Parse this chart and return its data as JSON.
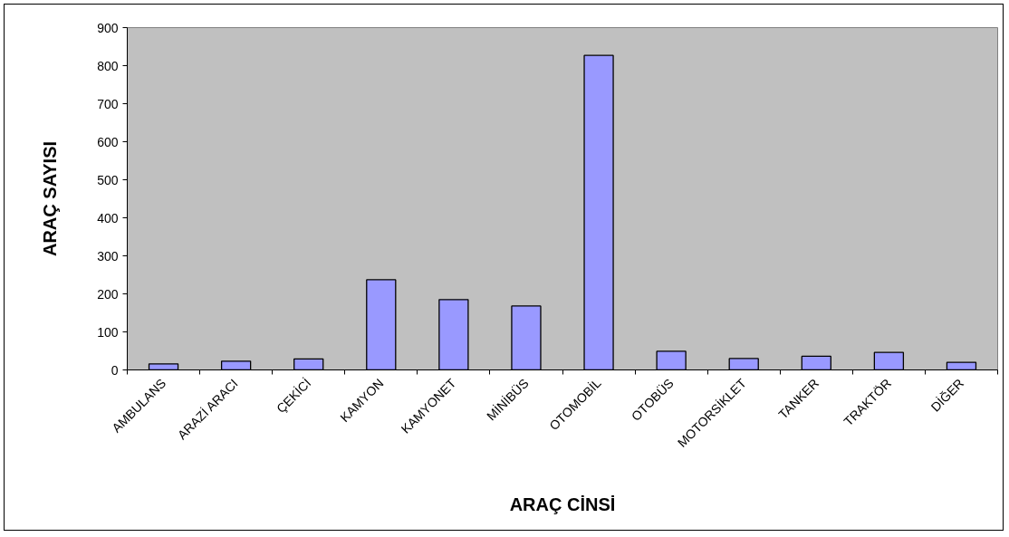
{
  "chart_data": {
    "type": "bar",
    "xlabel": "ARAÇ CİNSİ",
    "ylabel": "ARAÇ SAYISI",
    "categories": [
      "AMBULANS",
      "ARAZİ ARACI",
      "ÇEKİCİ",
      "KAMYON",
      "KAMYONET",
      "MİNİBÜS",
      "OTOMOBİL",
      "OTOBÜS",
      "MOTORSİKLET",
      "TANKER",
      "TRAKTÖR",
      "DİĞER"
    ],
    "values": [
      16,
      23,
      29,
      237,
      185,
      168,
      827,
      49,
      30,
      36,
      46,
      20
    ],
    "color": "#9999ff",
    "ylim": [
      0,
      900
    ],
    "yticks": [
      0,
      100,
      200,
      300,
      400,
      500,
      600,
      700,
      800,
      900
    ],
    "grid": false
  }
}
